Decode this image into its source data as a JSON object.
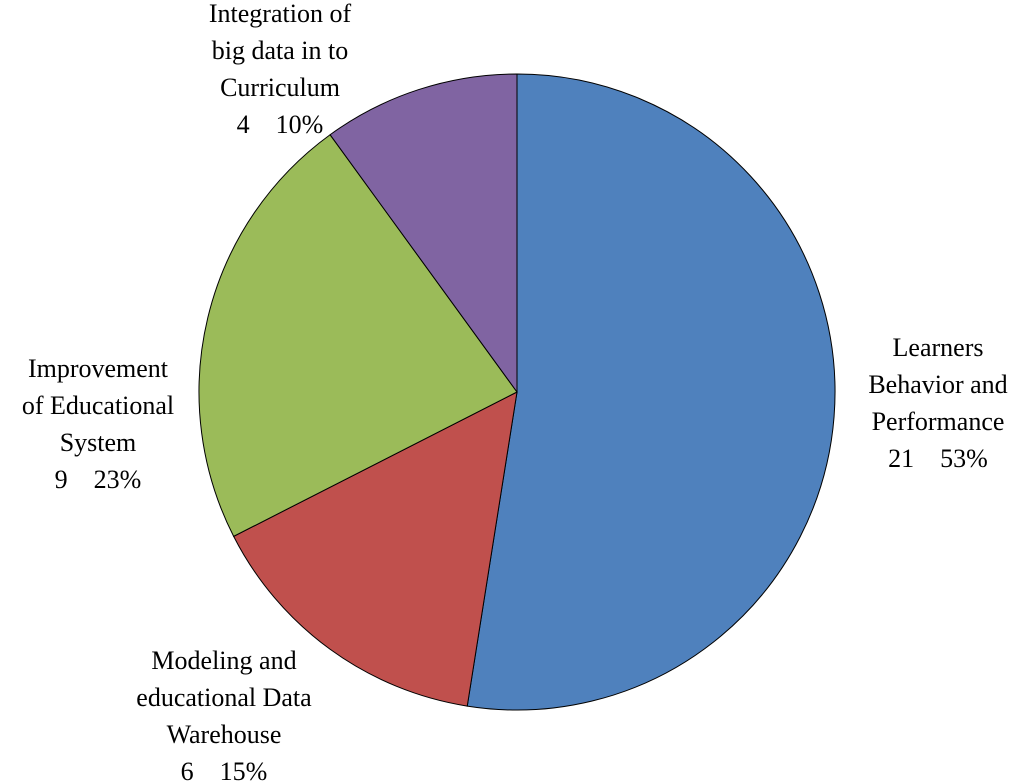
{
  "chart_data": {
    "type": "pie",
    "start_angle_deg": 0,
    "direction": "clockwise",
    "slices": [
      {
        "label_lines": [
          "Learners",
          "Behavior and",
          "Performance"
        ],
        "value": 21,
        "percent": "53%",
        "value_line": "21    53%",
        "color": "#4F81BD"
      },
      {
        "label_lines": [
          "Modeling and",
          "educational Data",
          "Warehouse"
        ],
        "value": 6,
        "percent": "15%",
        "value_line": "6    15%",
        "color": "#C0504D"
      },
      {
        "label_lines": [
          "Improvement",
          "of Educational",
          "System"
        ],
        "value": 9,
        "percent": "23%",
        "value_line": "9    23%",
        "color": "#9BBB59"
      },
      {
        "label_lines": [
          "Integration of",
          "big data in to",
          "Curriculum"
        ],
        "value": 4,
        "percent": "10%",
        "value_line": "4    10%",
        "color": "#8064A2"
      }
    ]
  }
}
